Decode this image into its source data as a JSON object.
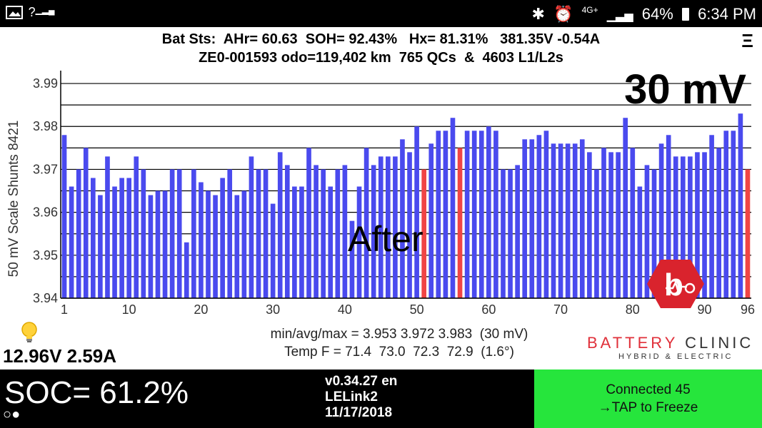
{
  "statusbar": {
    "left_icons": [
      "gallery-icon",
      "no-signal-icon"
    ],
    "no_signal_text": "?",
    "bluetooth": "✱",
    "alarm": "⏰",
    "network": "4G+",
    "battery_pct": "64%",
    "time": "6:34 PM"
  },
  "header": {
    "line1": "Bat Sts:  AHr= 60.63  SOH= 92.43%   Hx= 81.31%   381.35V -0.54A",
    "line2": "ZE0-001593 odo=119,402 km  765 QCs  &  4603 L1/L2s",
    "menu": "Ξ"
  },
  "scale_label": "30 mV",
  "after_label": "After",
  "chart_data": {
    "type": "bar",
    "ylabel": "50 mV Scale   Shunts 8421",
    "ylim": [
      3.94,
      3.993
    ],
    "y_ticks": [
      "3.99",
      "3.98",
      "3.97",
      "3.96",
      "3.95",
      "3.94"
    ],
    "y_tick_values": [
      3.99,
      3.98,
      3.97,
      3.96,
      3.95,
      3.94
    ],
    "x_ticks": [
      "1",
      "10",
      "20",
      "30",
      "40",
      "50",
      "60",
      "70",
      "80",
      "90",
      "96"
    ],
    "x_tick_values": [
      1,
      10,
      20,
      30,
      40,
      50,
      60,
      70,
      80,
      90,
      96
    ],
    "grid": true,
    "colors": {
      "normal": "#4a4aee",
      "shunt": "#f04545"
    },
    "shunt_cells": [
      51,
      56,
      96
    ],
    "values": [
      3.978,
      3.966,
      3.97,
      3.975,
      3.968,
      3.964,
      3.973,
      3.966,
      3.968,
      3.968,
      3.973,
      3.97,
      3.964,
      3.965,
      3.965,
      3.97,
      3.97,
      3.953,
      3.97,
      3.967,
      3.965,
      3.964,
      3.968,
      3.97,
      3.964,
      3.965,
      3.973,
      3.97,
      3.97,
      3.962,
      3.974,
      3.971,
      3.966,
      3.966,
      3.975,
      3.971,
      3.97,
      3.966,
      3.97,
      3.971,
      3.958,
      3.966,
      3.975,
      3.971,
      3.973,
      3.973,
      3.973,
      3.977,
      3.974,
      3.98,
      3.97,
      3.976,
      3.979,
      3.979,
      3.982,
      3.975,
      3.979,
      3.979,
      3.979,
      3.98,
      3.979,
      3.97,
      3.97,
      3.971,
      3.977,
      3.977,
      3.978,
      3.979,
      3.976,
      3.976,
      3.976,
      3.976,
      3.977,
      3.974,
      3.97,
      3.975,
      3.974,
      3.974,
      3.982,
      3.975,
      3.966,
      3.971,
      3.97,
      3.976,
      3.978,
      3.973,
      3.973,
      3.973,
      3.974,
      3.974,
      3.978,
      3.975,
      3.979,
      3.979,
      3.983,
      3.97
    ]
  },
  "stats": {
    "line1": "min/avg/max = 3.953 3.972 3.983  (30 mV)",
    "line2": "Temp F = 71.4  73.0  72.3  72.9  (1.6°)"
  },
  "aux": {
    "voltage": "12.96V 2.59A"
  },
  "brand": {
    "word1": "BATTERY",
    "word2": " CLINIC",
    "sub": "HYBRID & ELECTRIC",
    "color": "#e0303a"
  },
  "bottom": {
    "soc": "SOC= 61.2%",
    "dots": "○●",
    "version": "v0.34.27 en",
    "adapter": "LELink2",
    "date": "11/17/2018",
    "connected": "Connected 45",
    "tap": "→TAP to Freeze",
    "connected_color": "#26e53c"
  }
}
